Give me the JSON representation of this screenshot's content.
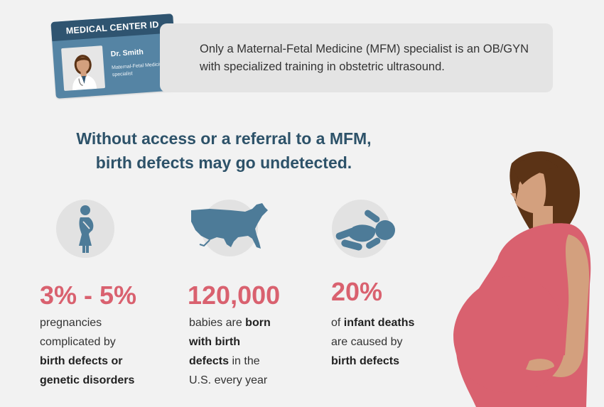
{
  "id_card": {
    "header": "MEDICAL CENTER ID",
    "name": "Dr. Smith",
    "role": "Maternal-Fetal Medicine specialist"
  },
  "banner": {
    "text": "Only a Maternal-Fetal Medicine (MFM) specialist is an OB/GYN  with specialized training in obstetric ultrasound."
  },
  "headline": {
    "line1": "Without access or a referral to a MFM,",
    "line2": "birth defects may go undetected."
  },
  "stats": [
    {
      "icon": "pregnant-woman-icon",
      "value": "3% - 5%",
      "text": {
        "a": "pregnancies",
        "b": "complicated by",
        "c": "birth defects or",
        "d": "genetic disorders"
      }
    },
    {
      "icon": "usa-map-icon",
      "value": "120,000",
      "text": {
        "a": "babies are ",
        "b": "born",
        "c": "with birth",
        "d": "defects",
        "e": " in the",
        "f": "U.S. every year"
      }
    },
    {
      "icon": "baby-icon",
      "value": "20%",
      "text": {
        "a": "of ",
        "b": "infant deaths",
        "c": "are caused by",
        "d": "birth defects"
      }
    }
  ],
  "colors": {
    "accent_red": "#d9616f",
    "navy": "#2d5269",
    "icon_blue": "#4d7b98",
    "dress_pink": "#d9616f",
    "skin": "#d3a07e",
    "hair": "#5b3316"
  }
}
